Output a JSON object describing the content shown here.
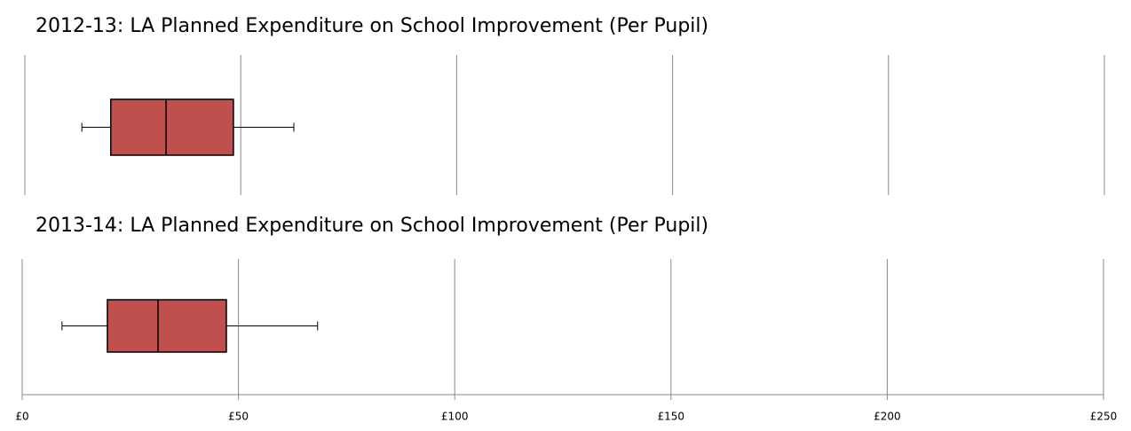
{
  "chart_data": [
    {
      "type": "box",
      "title": "2012-13: LA Planned Expenditure on School Improvement (Per Pupil)",
      "min": 13.2,
      "q1": 19.9,
      "median": 32.7,
      "q3": 48.3,
      "max": 62.3,
      "color": "#c0504d",
      "xlim": [
        0,
        250
      ],
      "xticks": [
        0,
        50,
        100,
        150,
        200,
        250
      ],
      "grid": true
    },
    {
      "type": "box",
      "title": "2013-14: LA Planned Expenditure on School Improvement (Per Pupil)",
      "min": 9.2,
      "q1": 19.7,
      "median": 31.4,
      "q3": 47.2,
      "max": 68.3,
      "color": "#c0504d",
      "xlim": [
        0,
        250
      ],
      "xticks": [
        {
          "value": 0,
          "label": "£0"
        },
        {
          "value": 50,
          "label": "£50"
        },
        {
          "value": 100,
          "label": "£100"
        },
        {
          "value": 150,
          "label": "£150"
        },
        {
          "value": 200,
          "label": "£200"
        },
        {
          "value": 250,
          "label": "£250"
        }
      ],
      "grid": true
    }
  ]
}
